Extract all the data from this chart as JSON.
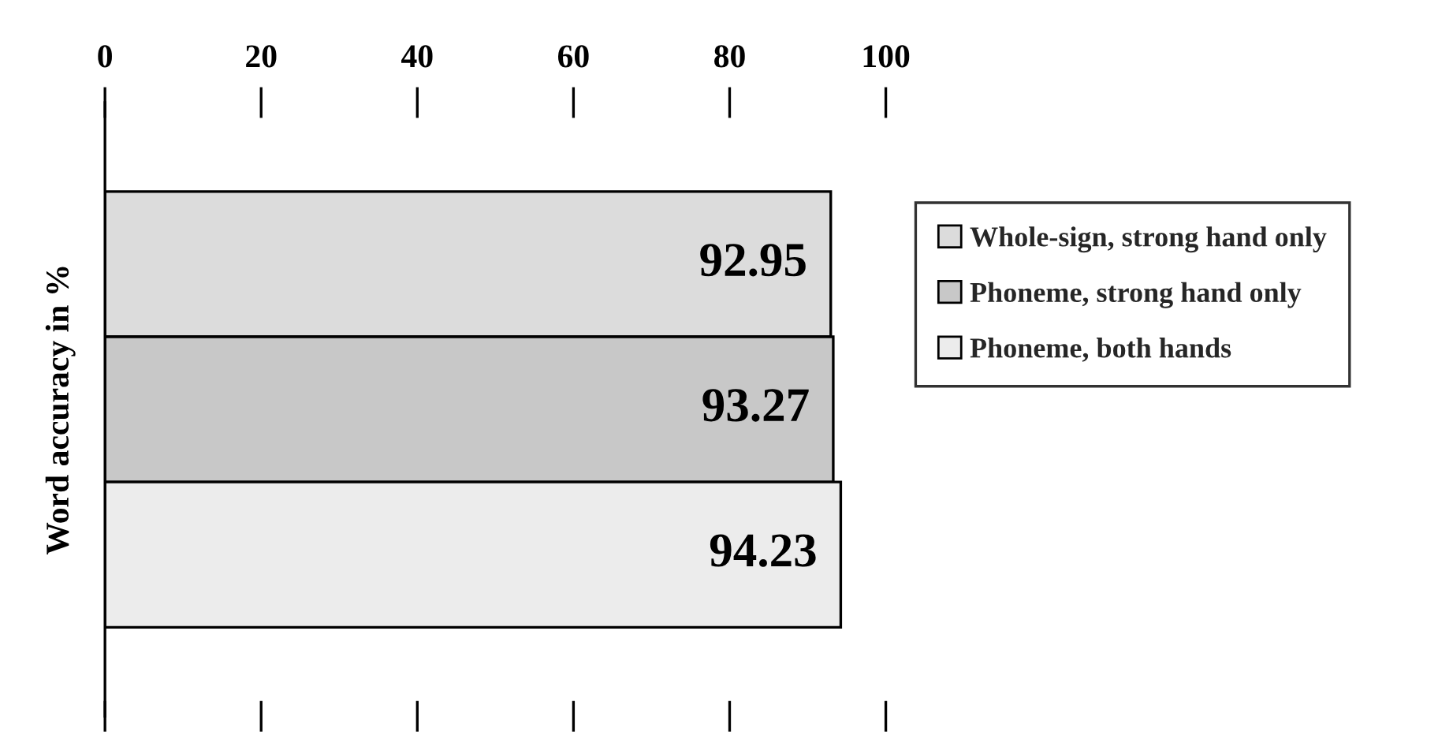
{
  "chart_data": {
    "type": "bar",
    "orientation": "horizontal",
    "ylabel": "Word accuracy in %",
    "categories": [
      null
    ],
    "series": [
      {
        "name": "Whole-sign, strong hand only",
        "color": "#dcdcdc",
        "values": [
          92.95
        ]
      },
      {
        "name": "Phoneme, strong hand only",
        "color": "#c8c8c8",
        "values": [
          93.27
        ]
      },
      {
        "name": "Phoneme, both hands",
        "color": "#ececec",
        "values": [
          94.23
        ]
      }
    ],
    "xlim": [
      0,
      100
    ],
    "xticks": [
      0,
      20,
      40,
      60,
      80,
      100
    ],
    "data_labels": true,
    "legend": "right",
    "grid": false
  }
}
